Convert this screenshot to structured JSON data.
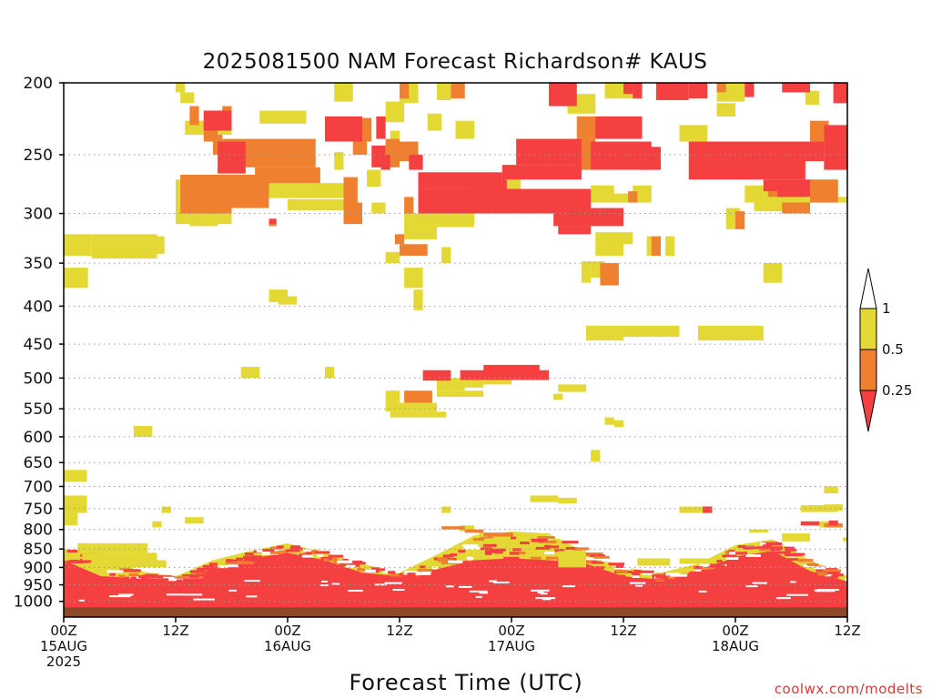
{
  "chart_data": {
    "type": "heatmap",
    "title": "2025081500 NAM Forecast Richardson# KAUS",
    "xlabel": "Forecast Time (UTC)",
    "ylabel": "",
    "y_axis": {
      "scale": "log-pressure-inverted",
      "range_hpa": [
        1050,
        200
      ],
      "ticks": [
        200,
        250,
        300,
        350,
        400,
        450,
        500,
        550,
        600,
        650,
        700,
        750,
        800,
        850,
        900,
        950,
        1000
      ],
      "grid": "dotted"
    },
    "x_axis": {
      "range_hours": [
        0,
        84
      ],
      "ticks": [
        {
          "hour": 0,
          "lines": [
            "00Z",
            "15AUG",
            "2025"
          ]
        },
        {
          "hour": 12,
          "lines": [
            "12Z"
          ]
        },
        {
          "hour": 24,
          "lines": [
            "00Z",
            "16AUG"
          ]
        },
        {
          "hour": 36,
          "lines": [
            "12Z"
          ]
        },
        {
          "hour": 48,
          "lines": [
            "00Z",
            "17AUG"
          ]
        },
        {
          "hour": 60,
          "lines": [
            "12Z"
          ]
        },
        {
          "hour": 72,
          "lines": [
            "00Z",
            "18AUG"
          ]
        },
        {
          "hour": 84,
          "lines": [
            "12Z"
          ]
        }
      ]
    },
    "legend": {
      "placement": "right",
      "levels": [
        {
          "label": "1",
          "color": "#ffffff"
        },
        {
          "label": "0.5",
          "color": "#e3d834"
        },
        {
          "label": "0.25",
          "color": "#ee8030"
        },
        {
          "label": "",
          "color": "#f44040"
        }
      ]
    },
    "colors": {
      "high": "#f44040",
      "mid": "#ee8030",
      "low": "#e3d834",
      "ground": "#8c4a2a"
    },
    "ground_pressure_hpa": 1018,
    "series": [
      {
        "level": "low",
        "regions": [
          [
            0.0,
            3.0,
            320,
            342
          ],
          [
            3.0,
            10.0,
            320,
            345
          ],
          [
            10.0,
            10.8,
            322,
            340
          ],
          [
            0.0,
            2.6,
            355,
            378
          ],
          [
            12.0,
            13.0,
            200,
            206
          ],
          [
            12.5,
            14.0,
            206,
            213
          ],
          [
            13.0,
            18.0,
            225,
            235
          ],
          [
            21.0,
            26.0,
            218,
            227
          ],
          [
            29.0,
            31.0,
            200,
            212
          ],
          [
            34.5,
            36.5,
            212,
            226
          ],
          [
            36.0,
            38.0,
            200,
            213
          ],
          [
            40.0,
            41.5,
            200,
            211
          ],
          [
            39.0,
            40.5,
            220,
            232
          ],
          [
            42.0,
            44.0,
            225,
            238
          ],
          [
            35.0,
            36.0,
            232,
            246
          ],
          [
            29.0,
            30.0,
            248,
            262
          ],
          [
            22.0,
            31.0,
            273,
            286
          ],
          [
            24.0,
            30.0,
            287,
            297
          ],
          [
            12.0,
            18.0,
            270,
            310
          ],
          [
            13.5,
            16.5,
            300,
            312
          ],
          [
            32.5,
            34.0,
            262,
            276
          ],
          [
            33.0,
            34.5,
            290,
            300
          ],
          [
            36.5,
            40.0,
            300,
            325
          ],
          [
            40.0,
            44.0,
            300,
            313
          ],
          [
            34.5,
            36.0,
            338,
            350
          ],
          [
            36.5,
            38.5,
            355,
            378
          ],
          [
            40.5,
            41.5,
            333,
            350
          ],
          [
            39.0,
            44.0,
            268,
            278
          ],
          [
            47.0,
            49.0,
            268,
            280
          ],
          [
            52.0,
            55.0,
            200,
            211
          ],
          [
            54.0,
            57.0,
            207,
            220
          ],
          [
            58.0,
            62.0,
            200,
            210
          ],
          [
            70.0,
            73.0,
            200,
            212
          ],
          [
            70.0,
            72.0,
            213,
            222
          ],
          [
            66.0,
            69.0,
            228,
            240
          ],
          [
            73.0,
            76.0,
            275,
            290
          ],
          [
            74.0,
            79.5,
            285,
            298
          ],
          [
            79.5,
            84.0,
            285,
            290
          ],
          [
            79.5,
            81.0,
            205,
            214
          ],
          [
            78.0,
            79.5,
            245,
            260
          ],
          [
            56.5,
            59.0,
            275,
            290
          ],
          [
            61.0,
            63.0,
            275,
            290
          ],
          [
            58.0,
            62.0,
            282,
            290
          ],
          [
            71.0,
            72.5,
            295,
            315
          ],
          [
            57.0,
            60.0,
            318,
            342
          ],
          [
            60.0,
            61.0,
            318,
            330
          ],
          [
            62.5,
            63.5,
            322,
            342
          ],
          [
            64.5,
            65.5,
            322,
            342
          ],
          [
            55.5,
            56.5,
            348,
            372
          ],
          [
            56.5,
            58.0,
            348,
            366
          ],
          [
            75.0,
            77.0,
            350,
            372
          ],
          [
            22.0,
            24.0,
            380,
            395
          ],
          [
            23.0,
            25.0,
            388,
            398
          ],
          [
            37.5,
            38.5,
            380,
            405
          ],
          [
            56.0,
            60.0,
            425,
            445
          ],
          [
            60.0,
            66.0,
            425,
            440
          ],
          [
            68.0,
            75.0,
            425,
            445
          ],
          [
            19.0,
            21.0,
            483,
            500
          ],
          [
            28.0,
            29.0,
            483,
            500
          ],
          [
            40.0,
            43.0,
            500,
            520
          ],
          [
            43.0,
            45.0,
            500,
            515
          ],
          [
            45.0,
            48.0,
            500,
            510
          ],
          [
            53.0,
            56.0,
            510,
            522
          ],
          [
            52.5,
            53.5,
            525,
            535
          ],
          [
            35.0,
            41.0,
            555,
            565
          ],
          [
            34.5,
            40.0,
            540,
            555
          ],
          [
            34.5,
            36.0,
            520,
            540
          ],
          [
            40.0,
            45.0,
            520,
            530
          ],
          [
            58.0,
            59.0,
            565,
            578
          ],
          [
            59.0,
            60.0,
            570,
            582
          ],
          [
            7.5,
            9.5,
            580,
            600
          ],
          [
            56.5,
            57.5,
            625,
            648
          ],
          [
            0.0,
            2.5,
            665,
            690
          ],
          [
            0.0,
            2.5,
            720,
            760
          ],
          [
            0.0,
            1.5,
            760,
            790
          ],
          [
            10.5,
            11.5,
            745,
            760
          ],
          [
            13.0,
            15.0,
            770,
            785
          ],
          [
            9.5,
            10.5,
            780,
            795
          ],
          [
            40.5,
            41.5,
            745,
            760
          ],
          [
            50.0,
            53.0,
            720,
            735
          ],
          [
            53.0,
            55.0,
            725,
            738
          ],
          [
            66.0,
            69.5,
            745,
            760
          ],
          [
            79.0,
            83.0,
            742,
            758
          ],
          [
            81.5,
            83.5,
            740,
            755
          ],
          [
            81.0,
            83.0,
            780,
            795
          ],
          [
            81.5,
            83.0,
            700,
            715
          ],
          [
            83.5,
            84.0,
            820,
            830
          ],
          [
            77.0,
            80.0,
            810,
            830
          ],
          [
            73.5,
            75.5,
            800,
            808
          ],
          [
            1.5,
            9.0,
            835,
            860
          ],
          [
            2.0,
            10.0,
            860,
            880
          ],
          [
            3.0,
            11.0,
            880,
            900
          ],
          [
            44.5,
            45.5,
            808,
            820
          ],
          [
            42.5,
            44.0,
            790,
            805
          ],
          [
            53.0,
            56.0,
            855,
            900
          ],
          [
            61.5,
            65.0,
            875,
            895
          ],
          [
            66.0,
            70.0,
            875,
            890
          ]
        ]
      },
      {
        "level": "mid",
        "regions": [
          [
            13.5,
            14.5,
            215,
            228
          ],
          [
            15.0,
            16.5,
            222,
            240
          ],
          [
            17.0,
            18.0,
            215,
            230
          ],
          [
            16.0,
            17.0,
            235,
            250
          ],
          [
            17.0,
            27.0,
            238,
            260
          ],
          [
            20.5,
            27.5,
            260,
            273
          ],
          [
            12.5,
            18.0,
            266,
            300
          ],
          [
            18.0,
            22.0,
            266,
            295
          ],
          [
            22.0,
            22.8,
            305,
            312
          ],
          [
            30.0,
            31.5,
            268,
            300
          ],
          [
            31.0,
            32.5,
            238,
            250
          ],
          [
            34.5,
            36.0,
            238,
            260
          ],
          [
            30.0,
            32.0,
            290,
            310
          ],
          [
            36.0,
            38.0,
            240,
            255
          ],
          [
            36.5,
            37.5,
            285,
            300
          ],
          [
            32.0,
            33.0,
            223,
            240
          ],
          [
            36.0,
            37.0,
            200,
            210
          ],
          [
            41.5,
            43.0,
            200,
            210
          ],
          [
            55.0,
            57.0,
            237,
            262
          ],
          [
            55.0,
            58.5,
            222,
            237
          ],
          [
            70.0,
            71.0,
            200,
            206
          ],
          [
            75.5,
            79.5,
            275,
            285
          ],
          [
            77.0,
            80.0,
            290,
            300
          ],
          [
            80.0,
            82.0,
            225,
            240
          ],
          [
            80.0,
            83.0,
            270,
            290
          ],
          [
            72.0,
            73.0,
            298,
            315
          ],
          [
            60.5,
            61.5,
            280,
            290
          ],
          [
            63.0,
            64.0,
            322,
            342
          ],
          [
            57.5,
            59.5,
            350,
            375
          ],
          [
            36.0,
            39.0,
            330,
            342
          ],
          [
            35.5,
            36.5,
            320,
            330
          ],
          [
            36.5,
            39.5,
            520,
            540
          ],
          [
            45.0,
            48.0,
            808,
            818
          ],
          [
            81.5,
            83.5,
            785,
            795
          ],
          [
            84.0,
            85.0,
            700,
            710
          ],
          [
            43.0,
            45.0,
            800,
            808
          ],
          [
            40.5,
            43.0,
            792,
            800
          ]
        ]
      },
      {
        "level": "high",
        "regions": [
          [
            15.0,
            18.0,
            218,
            232
          ],
          [
            16.5,
            19.5,
            240,
            265
          ],
          [
            28.0,
            32.0,
            222,
            240
          ],
          [
            33.5,
            34.5,
            222,
            238
          ],
          [
            33.0,
            34.5,
            243,
            260
          ],
          [
            34.0,
            35.0,
            250,
            262
          ],
          [
            37.0,
            38.5,
            250,
            262
          ],
          [
            38.0,
            47.0,
            264,
            278
          ],
          [
            38.0,
            56.5,
            278,
            300
          ],
          [
            43.5,
            47.5,
            270,
            280
          ],
          [
            47.0,
            55.5,
            258,
            270
          ],
          [
            48.5,
            55.5,
            238,
            258
          ],
          [
            56.5,
            63.0,
            240,
            262
          ],
          [
            57.0,
            62.0,
            222,
            238
          ],
          [
            62.0,
            64.0,
            244,
            262
          ],
          [
            67.0,
            81.5,
            240,
            255
          ],
          [
            67.0,
            79.5,
            255,
            270
          ],
          [
            75.0,
            80.0,
            270,
            280
          ],
          [
            76.5,
            80.0,
            280,
            285
          ],
          [
            81.5,
            84.0,
            228,
            262
          ],
          [
            52.5,
            60.0,
            295,
            312
          ],
          [
            53.0,
            56.5,
            312,
            320
          ],
          [
            52.0,
            55.0,
            200,
            215
          ],
          [
            61.0,
            62.0,
            200,
            210
          ],
          [
            60.0,
            61.0,
            200,
            207
          ],
          [
            63.5,
            67.0,
            200,
            211
          ],
          [
            67.0,
            69.0,
            200,
            210
          ],
          [
            73.0,
            74.0,
            200,
            209
          ],
          [
            77.0,
            80.0,
            200,
            206
          ],
          [
            82.5,
            84.0,
            200,
            213
          ],
          [
            22.0,
            22.8,
            305,
            310
          ],
          [
            38.5,
            41.5,
            488,
            504
          ],
          [
            42.5,
            52.0,
            488,
            503
          ],
          [
            45.0,
            51.0,
            480,
            490
          ],
          [
            68.5,
            69.5,
            745,
            760
          ],
          [
            79.0,
            81.0,
            780,
            790
          ],
          [
            82.0,
            83.0,
            778,
            790
          ],
          [
            79.5,
            81.0,
            785,
            790
          ],
          [
            73.0,
            77.0,
            843,
            850
          ]
        ]
      }
    ],
    "pbl_profile": {
      "hours": [
        0,
        4,
        8,
        12,
        16,
        20,
        24,
        28,
        32,
        36,
        40,
        44,
        48,
        52,
        56,
        60,
        64,
        68,
        72,
        76,
        80,
        84
      ],
      "red_top_hpa": [
        880,
        925,
        930,
        935,
        905,
        875,
        860,
        880,
        915,
        925,
        905,
        880,
        875,
        880,
        890,
        925,
        935,
        915,
        870,
        855,
        910,
        940
      ],
      "mixed_top_hpa": [
        850,
        855,
        910,
        925,
        880,
        855,
        835,
        860,
        890,
        915,
        865,
        815,
        805,
        810,
        860,
        900,
        915,
        890,
        840,
        825,
        880,
        925
      ]
    },
    "credit": "coolwx.com/modelts"
  }
}
